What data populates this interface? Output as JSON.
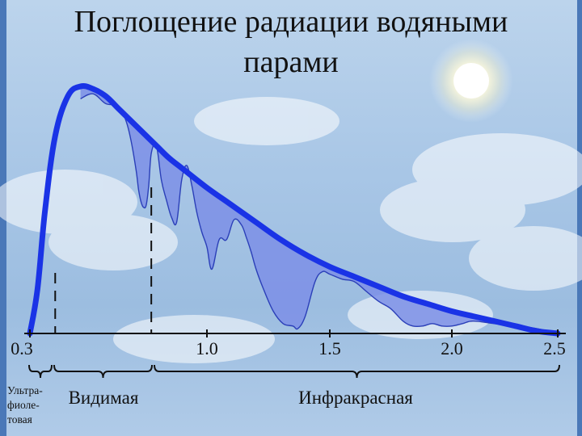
{
  "title": {
    "line1": "Поглощение радиации водяными",
    "line2": "парами"
  },
  "colors": {
    "curve": "#1a33e6",
    "absorption_fill": "#7d8fe6",
    "axis": "#111111"
  },
  "chart_data": {
    "type": "area",
    "title": "Поглощение радиации водяными парами",
    "xlabel": "",
    "ylabel": "",
    "xlim": [
      0.3,
      2.5
    ],
    "ylim": [
      0,
      1
    ],
    "grid": false,
    "x_ticks": [
      0.3,
      1.0,
      1.5,
      2.0,
      2.5
    ],
    "x_tick_labels": [
      "0.3",
      "1.0",
      "1.5",
      "2.0",
      "2.5"
    ],
    "series": [
      {
        "role": "outer-envelope",
        "x": [
          0.3,
          0.33,
          0.36,
          0.4,
          0.45,
          0.5,
          0.55,
          0.6,
          0.65,
          0.7,
          0.75,
          0.8,
          0.85,
          0.9,
          1.0,
          1.1,
          1.2,
          1.3,
          1.4,
          1.5,
          1.6,
          1.7,
          1.8,
          1.9,
          2.0,
          2.1,
          2.2,
          2.3,
          2.4,
          2.5
        ],
        "y": [
          0.0,
          0.18,
          0.5,
          0.8,
          0.96,
          1.0,
          0.99,
          0.96,
          0.91,
          0.86,
          0.81,
          0.76,
          0.71,
          0.67,
          0.59,
          0.52,
          0.45,
          0.38,
          0.32,
          0.27,
          0.23,
          0.19,
          0.15,
          0.12,
          0.09,
          0.07,
          0.05,
          0.03,
          0.01,
          0.0
        ]
      },
      {
        "role": "after-absorption",
        "x": [
          0.5,
          0.55,
          0.6,
          0.65,
          0.68,
          0.7,
          0.72,
          0.73,
          0.74,
          0.75,
          0.76,
          0.77,
          0.78,
          0.8,
          0.82,
          0.84,
          0.86,
          0.88,
          0.9,
          0.92,
          0.94,
          0.96,
          0.98,
          1.0,
          1.02,
          1.05,
          1.08,
          1.11,
          1.14,
          1.16,
          1.18,
          1.2,
          1.23,
          1.27,
          1.31,
          1.35,
          1.37,
          1.4,
          1.44,
          1.47,
          1.5,
          1.55,
          1.6,
          1.65,
          1.7,
          1.75,
          1.8,
          1.84,
          1.88,
          1.92,
          1.96,
          2.0,
          2.05,
          2.1,
          2.2,
          2.3,
          2.4,
          2.5
        ],
        "y": [
          0.95,
          0.97,
          0.93,
          0.92,
          0.86,
          0.78,
          0.66,
          0.58,
          0.53,
          0.51,
          0.52,
          0.6,
          0.73,
          0.76,
          0.62,
          0.54,
          0.47,
          0.45,
          0.62,
          0.68,
          0.6,
          0.49,
          0.41,
          0.35,
          0.26,
          0.38,
          0.38,
          0.46,
          0.44,
          0.39,
          0.33,
          0.26,
          0.18,
          0.09,
          0.04,
          0.03,
          0.02,
          0.07,
          0.21,
          0.25,
          0.24,
          0.22,
          0.21,
          0.17,
          0.13,
          0.1,
          0.05,
          0.03,
          0.03,
          0.04,
          0.03,
          0.03,
          0.04,
          0.05,
          0.04,
          0.03,
          0.02,
          0.0
        ]
      }
    ],
    "annotations": [
      {
        "type": "vline-dashed",
        "x": 0.4
      },
      {
        "type": "vline-dashed",
        "x": 0.78
      }
    ],
    "regions": [
      {
        "label": "Ультра-\nфиоле-\nтовая",
        "lines": [
          "Ультра-",
          "фиоле-",
          "товая"
        ],
        "x_range": [
          0.3,
          0.4
        ]
      },
      {
        "label": "Видимая",
        "x_range": [
          0.4,
          0.78
        ]
      },
      {
        "label": "Инфракрасная",
        "x_range": [
          0.78,
          2.5
        ]
      }
    ]
  }
}
